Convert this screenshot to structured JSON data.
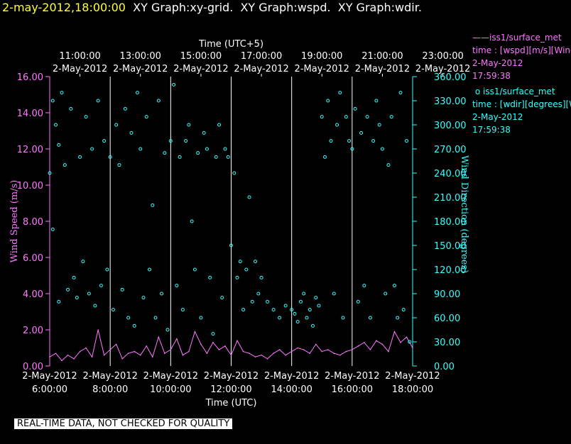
{
  "header": {
    "datetime": "2-may-2012,18:00:00",
    "titles": "XY Graph:xy-grid.  XY Graph:wspd.  XY Graph:wdir."
  },
  "legend": [
    {
      "line1": "iss1/surface_met",
      "line2": "time : [wspd][m/s][Wind",
      "line3": "2-May-2012",
      "line4": "17:59:38",
      "color": "#ff77ff"
    },
    {
      "line1": "iss1/surface_met",
      "line2": "time : [wdir][degrees][W",
      "line3": "2-May-2012",
      "line4": "17:59:38",
      "color": "#33ffff"
    }
  ],
  "banner": "REAL-TIME DATA, NOT CHECKED FOR QUALITY",
  "chart_data": {
    "type": "scatter",
    "top_axis": {
      "title": "Time (UTC+5)",
      "tick_times": [
        "11:00:00",
        "13:00:00",
        "15:00:00",
        "17:00:00",
        "19:00:00",
        "21:00:00",
        "23:00:00"
      ],
      "tick_date": "2-May-2012"
    },
    "bottom_axis": {
      "title": "Time (UTC)",
      "tick_times": [
        "6:00:00",
        "8:00:00",
        "10:00:00",
        "12:00:00",
        "14:00:00",
        "16:00:00",
        "18:00:00"
      ],
      "tick_date": "2-May-2012",
      "xlim": [
        "2012-05-02 06:00:00",
        "2012-05-02 18:00:00"
      ]
    },
    "left_axis": {
      "label": "Wind Speed (m/s)",
      "ticks": [
        "0.00",
        "2.00",
        "4.00",
        "6.00",
        "8.00",
        "10.00",
        "12.00",
        "14.00",
        "16.00"
      ],
      "ylim": [
        0,
        16
      ],
      "color": "#ff77ff"
    },
    "right_axis": {
      "label": "Wind Direction (degrees)",
      "ticks": [
        "0.00",
        "30.00",
        "60.00",
        "90.00",
        "120.00",
        "150.00",
        "180.00",
        "210.00",
        "240.00",
        "270.00",
        "300.00",
        "330.00",
        "360.00"
      ],
      "ylim": [
        0,
        360
      ],
      "color": "#33ffff"
    },
    "grid": "vertical lines at each 2-hour tick",
    "series": [
      {
        "name": "iss1/surface_met",
        "color": "#ff77ff",
        "style": "line",
        "x_hours_utc": [
          6.0,
          6.2,
          6.4,
          6.6,
          6.8,
          7.0,
          7.2,
          7.4,
          7.6,
          7.8,
          8.0,
          8.2,
          8.4,
          8.6,
          8.8,
          9.0,
          9.2,
          9.4,
          9.6,
          9.8,
          10.0,
          10.2,
          10.4,
          10.6,
          10.8,
          11.0,
          11.2,
          11.4,
          11.6,
          11.8,
          12.0,
          12.2,
          12.4,
          12.6,
          12.8,
          13.0,
          13.2,
          13.4,
          13.6,
          13.8,
          14.0,
          14.2,
          14.4,
          14.6,
          14.8,
          15.0,
          15.2,
          15.4,
          15.6,
          15.8,
          16.0,
          16.2,
          16.4,
          16.6,
          16.8,
          17.0,
          17.2,
          17.4,
          17.6,
          17.8,
          18.0
        ],
        "values": [
          0.5,
          0.7,
          0.3,
          0.6,
          0.4,
          0.8,
          1.0,
          0.5,
          2.0,
          0.6,
          0.9,
          1.2,
          0.4,
          0.7,
          0.8,
          0.6,
          1.1,
          0.5,
          1.6,
          0.7,
          0.9,
          1.5,
          0.6,
          0.8,
          1.9,
          1.2,
          0.7,
          1.3,
          0.9,
          1.1,
          0.6,
          1.4,
          0.8,
          0.7,
          0.5,
          0.6,
          0.4,
          0.7,
          0.9,
          0.6,
          0.8,
          1.0,
          0.9,
          0.7,
          1.2,
          0.8,
          0.9,
          0.7,
          0.6,
          0.8,
          0.9,
          1.1,
          1.3,
          0.9,
          1.4,
          1.2,
          0.8,
          1.9,
          1.3,
          1.6,
          1.0
        ]
      },
      {
        "name": "iss1/surface_met",
        "color": "#33ffff",
        "style": "points",
        "x_hours_utc": [
          6.0,
          6.1,
          6.1,
          6.2,
          6.3,
          6.3,
          6.4,
          6.5,
          6.6,
          6.7,
          6.8,
          6.9,
          7.0,
          7.1,
          7.2,
          7.3,
          7.4,
          7.5,
          7.6,
          7.7,
          7.8,
          7.9,
          8.0,
          8.1,
          8.2,
          8.3,
          8.4,
          8.5,
          8.6,
          8.7,
          8.8,
          8.9,
          9.0,
          9.1,
          9.2,
          9.3,
          9.4,
          9.5,
          9.6,
          9.7,
          9.8,
          9.9,
          10.0,
          10.1,
          10.2,
          10.3,
          10.4,
          10.5,
          10.6,
          10.7,
          10.8,
          10.9,
          11.0,
          11.1,
          11.2,
          11.3,
          11.4,
          11.5,
          11.6,
          11.7,
          11.8,
          11.9,
          12.0,
          12.1,
          12.2,
          12.3,
          12.4,
          12.5,
          12.6,
          12.7,
          12.8,
          12.9,
          13.0,
          13.2,
          13.4,
          13.6,
          13.8,
          14.0,
          14.1,
          14.2,
          14.3,
          14.4,
          14.5,
          14.6,
          14.7,
          14.8,
          14.9,
          15.0,
          15.1,
          15.2,
          15.3,
          15.4,
          15.5,
          15.6,
          15.7,
          15.8,
          15.9,
          16.0,
          16.1,
          16.2,
          16.3,
          16.4,
          16.5,
          16.6,
          16.7,
          16.8,
          16.9,
          17.0,
          17.1,
          17.2,
          17.3,
          17.4,
          17.5,
          17.6,
          17.7,
          17.8,
          17.9
        ],
        "values": [
          240,
          330,
          170,
          300,
          275,
          80,
          340,
          250,
          95,
          320,
          110,
          85,
          260,
          130,
          310,
          90,
          270,
          75,
          330,
          100,
          280,
          120,
          260,
          70,
          300,
          250,
          95,
          320,
          60,
          290,
          50,
          340,
          270,
          85,
          310,
          120,
          200,
          60,
          330,
          90,
          265,
          45,
          280,
          350,
          100,
          260,
          70,
          280,
          300,
          180,
          120,
          265,
          60,
          290,
          270,
          110,
          40,
          260,
          300,
          85,
          270,
          260,
          150,
          240,
          110,
          130,
          70,
          120,
          210,
          80,
          130,
          90,
          110,
          80,
          70,
          60,
          75,
          70,
          65,
          55,
          80,
          90,
          60,
          70,
          50,
          85,
          75,
          310,
          260,
          330,
          280,
          90,
          300,
          340,
          60,
          310,
          280,
          270,
          320,
          80,
          290,
          100,
          310,
          60,
          280,
          330,
          300,
          270,
          90,
          250,
          310,
          100,
          60,
          340,
          70,
          280,
          30
        ]
      }
    ]
  }
}
